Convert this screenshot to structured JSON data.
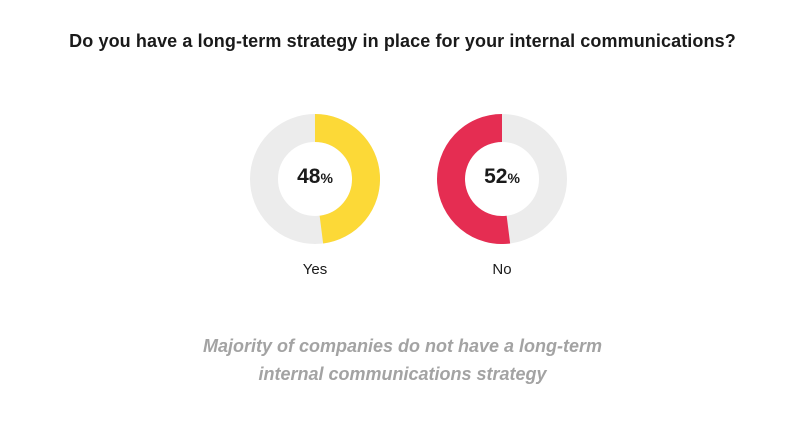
{
  "chart_data": {
    "type": "pie",
    "title": "Do you have a long-term strategy in place for your internal communications?",
    "donut": true,
    "track_color": "#ececec",
    "slices": [
      {
        "label": "Yes",
        "value": 48,
        "value_text": "48",
        "unit": "%",
        "color": "#fcd937",
        "start": "top",
        "direction": "clockwise"
      },
      {
        "label": "No",
        "value": 52,
        "value_text": "52",
        "unit": "%",
        "color": "#e52d52",
        "start": "top",
        "direction": "counterclockwise"
      }
    ]
  },
  "caption": {
    "line1": "Majority of companies do not have a long-term",
    "line2": "internal communications strategy"
  }
}
